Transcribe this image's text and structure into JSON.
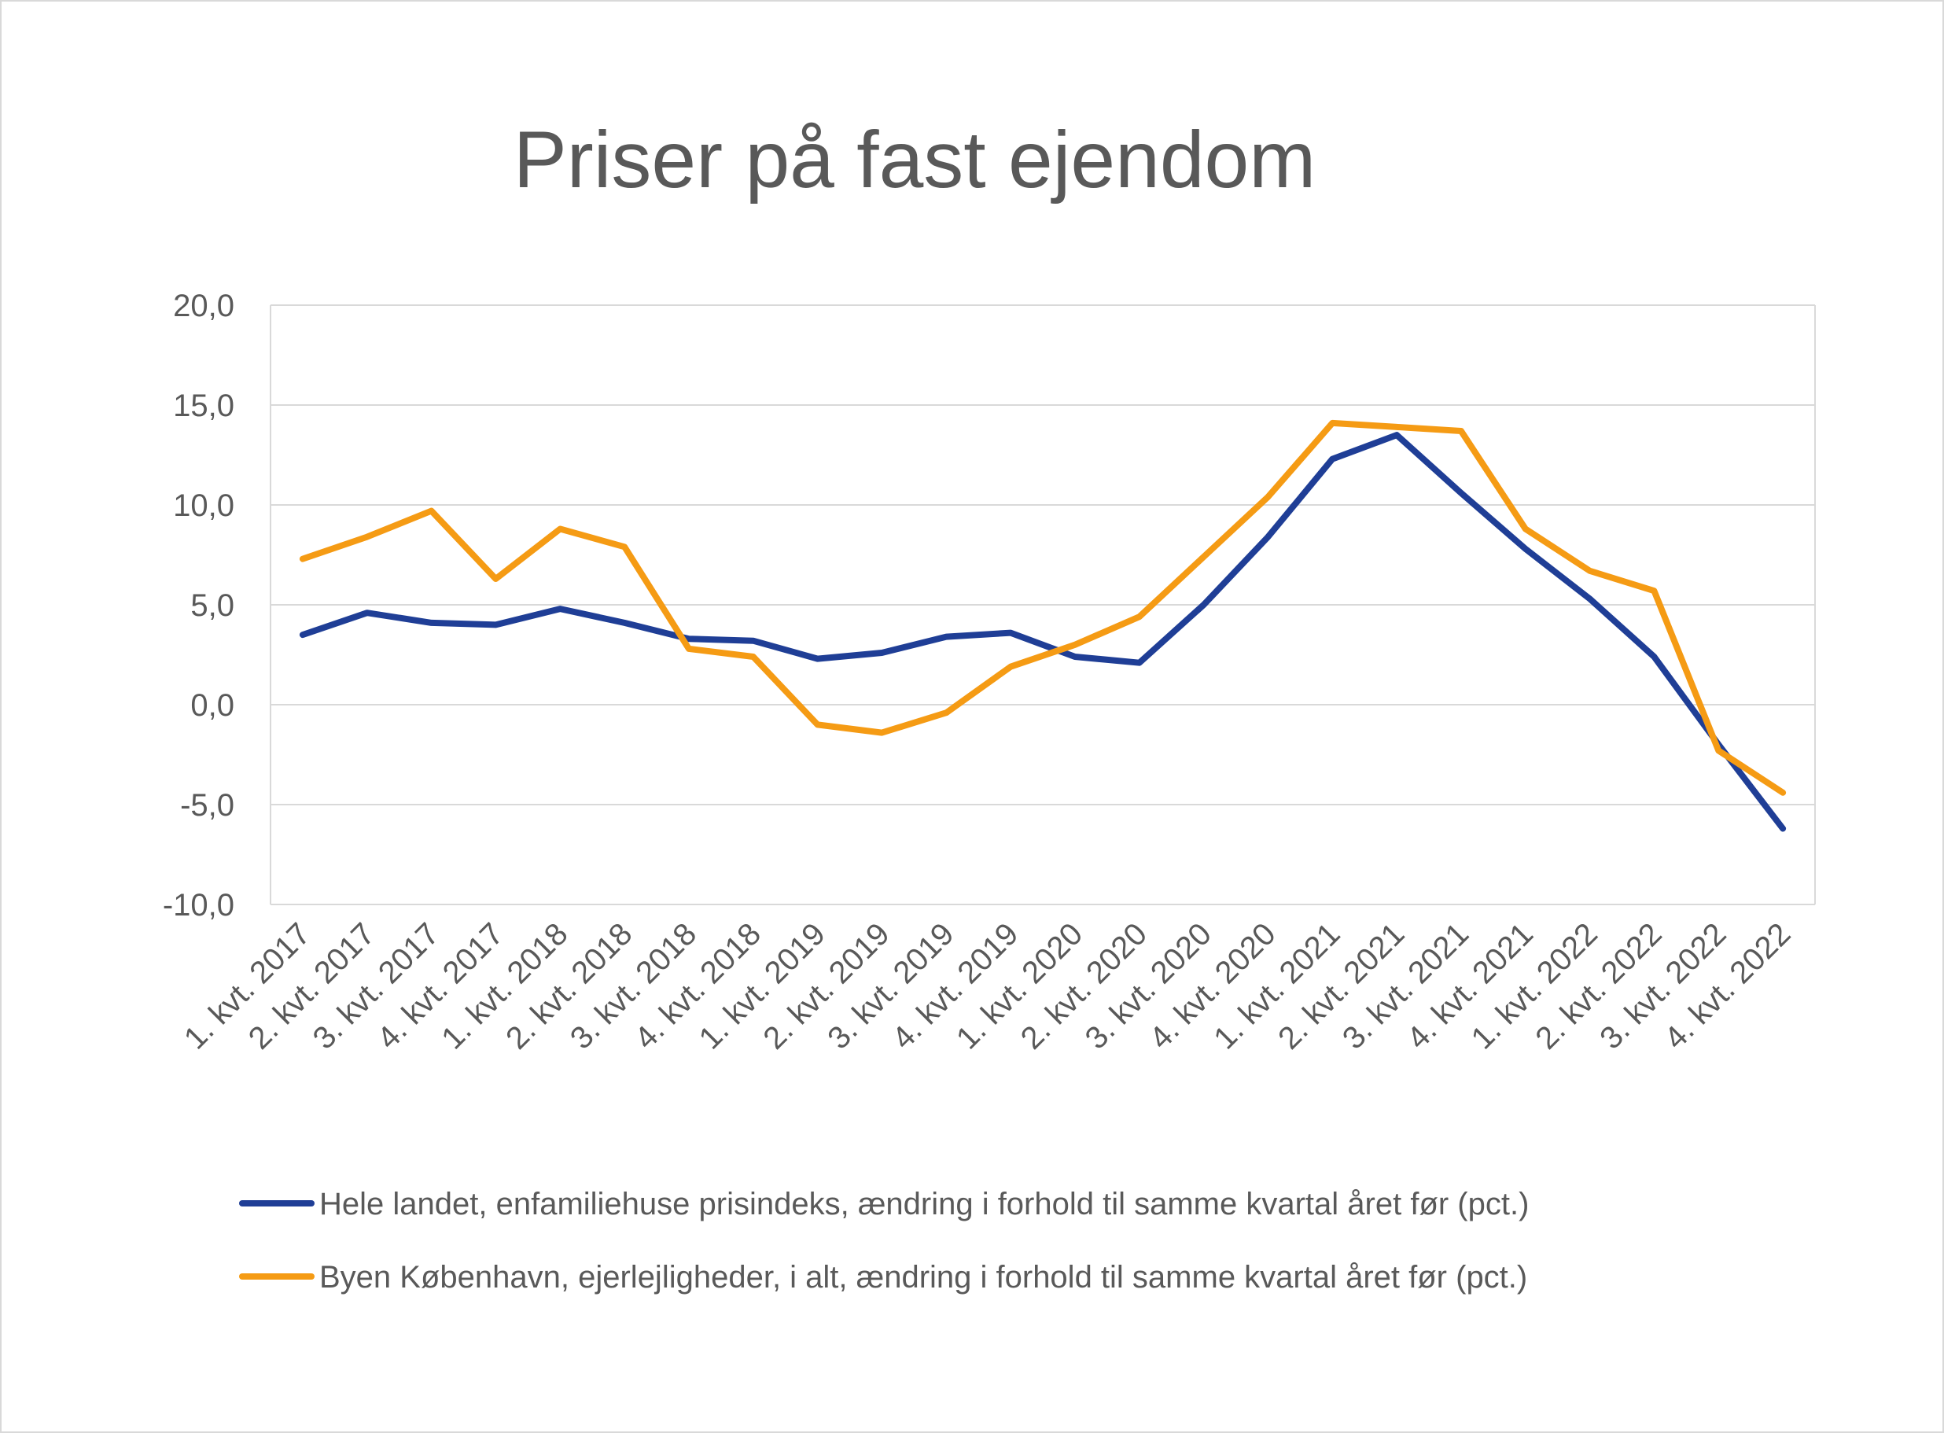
{
  "chart_data": {
    "type": "line",
    "title": "Priser på fast ejendom",
    "xlabel": "",
    "ylabel": "",
    "ylim": [
      -10,
      20
    ],
    "yticks": [
      20,
      15,
      10,
      5,
      0,
      -5,
      -10
    ],
    "ytick_labels": [
      "20,0",
      "15,0",
      "10,0",
      "5,0",
      "0,0",
      "-5,0",
      "-10,0"
    ],
    "grid": true,
    "legend_position": "bottom",
    "categories": [
      "1. kvt. 2017",
      "2. kvt. 2017",
      "3. kvt. 2017",
      "4. kvt. 2017",
      "1. kvt. 2018",
      "2. kvt. 2018",
      "3. kvt. 2018",
      "4. kvt. 2018",
      "1. kvt. 2019",
      "2. kvt. 2019",
      "3. kvt. 2019",
      "4. kvt. 2019",
      "1. kvt. 2020",
      "2. kvt. 2020",
      "3. kvt. 2020",
      "4. kvt. 2020",
      "1. kvt. 2021",
      "2. kvt. 2021",
      "3. kvt. 2021",
      "4. kvt. 2021",
      "1. kvt. 2022",
      "2. kvt. 2022",
      "3. kvt. 2022",
      "4. kvt. 2022"
    ],
    "series": [
      {
        "name": "Hele landet, enfamiliehuse prisindeks, ændring i forhold til samme kvartal året før (pct.)",
        "color": "#1F3E96",
        "values": [
          3.5,
          4.6,
          4.1,
          4.0,
          4.8,
          4.1,
          3.3,
          3.2,
          2.3,
          2.6,
          3.4,
          3.6,
          2.4,
          2.1,
          5.0,
          8.4,
          12.3,
          13.5,
          10.6,
          7.8,
          5.3,
          2.4,
          -2.0,
          -6.2
        ]
      },
      {
        "name": "Byen København, ejerlejligheder, i alt, ændring i forhold til samme kvartal året før (pct.)",
        "color": "#F59B14",
        "values": [
          7.3,
          8.4,
          9.7,
          6.3,
          8.8,
          7.9,
          2.8,
          2.4,
          -1.0,
          -1.4,
          -0.4,
          1.9,
          3.0,
          4.4,
          7.4,
          10.4,
          14.1,
          13.9,
          13.7,
          8.8,
          6.7,
          5.7,
          -2.3,
          -4.4
        ]
      }
    ],
    "colors": {
      "grid": "#d9d9d9",
      "text": "#595959",
      "border": "#d9d9d9"
    }
  }
}
